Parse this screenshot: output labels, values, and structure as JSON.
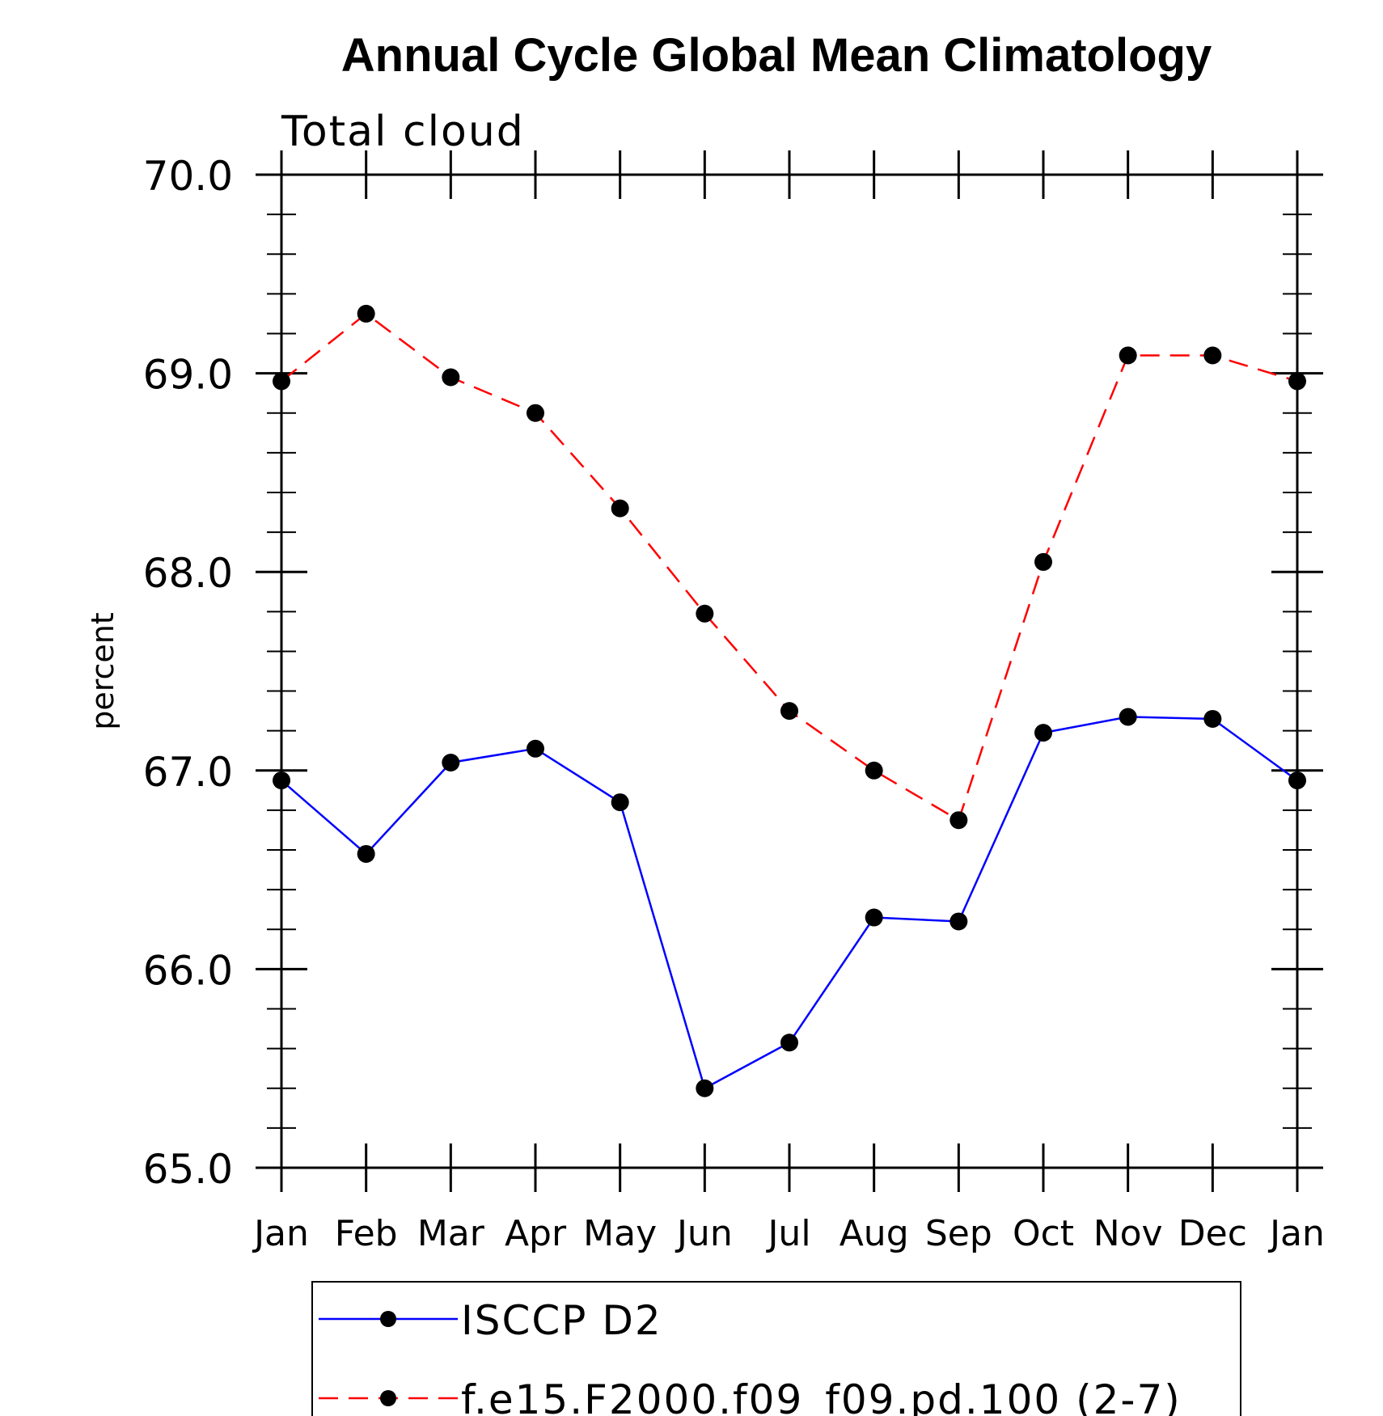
{
  "chart_data": {
    "type": "line",
    "title": "Annual Cycle Global Mean Climatology",
    "subtitle": "Total cloud",
    "xlabel": "",
    "ylabel": "percent",
    "ylim": [
      65.0,
      70.0
    ],
    "yticks": [
      "70.0",
      "69.0",
      "68.0",
      "67.0",
      "66.0",
      "65.0"
    ],
    "ytick_values": [
      70.0,
      69.0,
      68.0,
      67.0,
      66.0,
      65.0
    ],
    "categories": [
      "Jan",
      "Feb",
      "Mar",
      "Apr",
      "May",
      "Jun",
      "Jul",
      "Aug",
      "Sep",
      "Oct",
      "Nov",
      "Dec",
      "Jan"
    ],
    "grid": false,
    "legend_position": "bottom",
    "series": [
      {
        "name": "ISCCP D2",
        "color": "#0000ff",
        "dash": "solid",
        "marker": "filled-circle",
        "values": [
          66.95,
          66.58,
          67.04,
          67.11,
          66.84,
          65.4,
          65.63,
          66.26,
          66.24,
          67.19,
          67.27,
          67.26,
          66.95
        ]
      },
      {
        "name": "f.e15.F2000.f09_f09.pd.100 (2-7)",
        "color": "#ff0000",
        "dash": "dashed",
        "marker": "filled-circle",
        "values": [
          68.96,
          69.3,
          68.98,
          68.8,
          68.32,
          67.79,
          67.3,
          67.0,
          66.75,
          68.05,
          69.09,
          69.09,
          68.96
        ]
      }
    ]
  }
}
